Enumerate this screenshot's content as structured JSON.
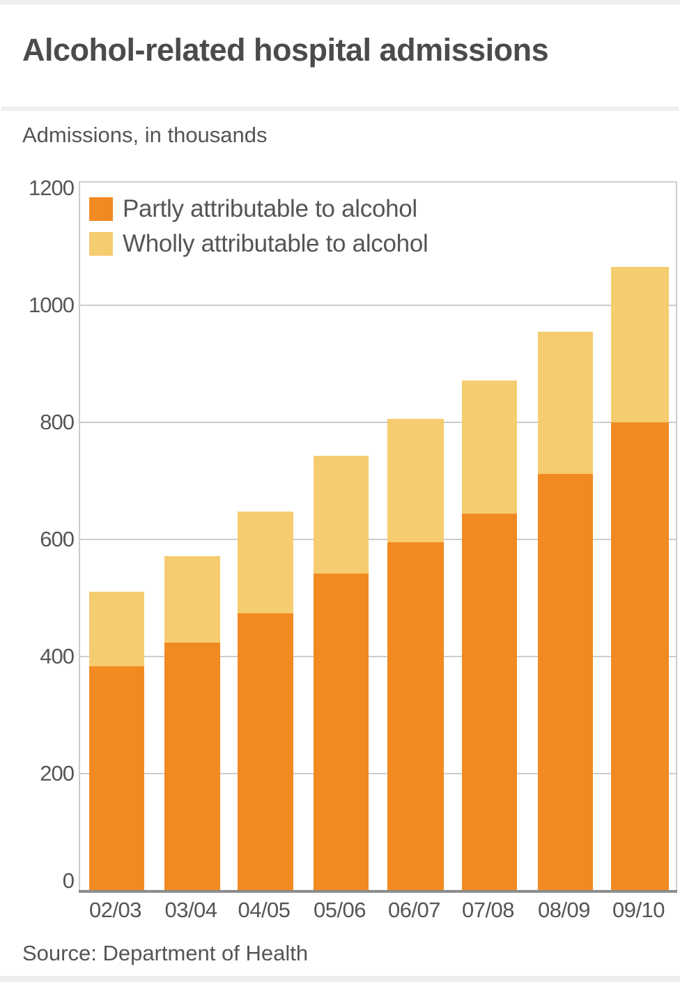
{
  "title": "Alcohol-related hospital admissions",
  "subtitle": "Admissions, in thousands",
  "source": "Source: Department of Health",
  "colors": {
    "partly": "#f28a22",
    "wholly": "#f5cc6f",
    "grid": "#cccccc",
    "axis": "#8c8c8c",
    "text": "#555555"
  },
  "legend": [
    {
      "label": "Partly attributable to alcohol",
      "color": "#f28a22"
    },
    {
      "label": "Wholly attributable to alcohol",
      "color": "#f5cc6f"
    }
  ],
  "y_ticks": [
    "0",
    "200",
    "400",
    "600",
    "800",
    "1000",
    "1200"
  ],
  "x_ticks": [
    "02/03",
    "03/04",
    "04/05",
    "05/06",
    "06/07",
    "07/08",
    "08/09",
    "09/10"
  ],
  "chart_data": {
    "type": "bar",
    "stacked": true,
    "title": "Alcohol-related hospital admissions",
    "subtitle": "Admissions, in thousands",
    "xlabel": "",
    "ylabel": "Admissions, in thousands",
    "ylim": [
      0,
      1200
    ],
    "yticks": [
      0,
      200,
      400,
      600,
      800,
      1000,
      1200
    ],
    "grid": true,
    "legend_position": "top-left inside",
    "categories": [
      "02/03",
      "03/04",
      "04/05",
      "05/06",
      "06/07",
      "07/08",
      "08/09",
      "09/10"
    ],
    "series": [
      {
        "name": "Partly attributable to alcohol",
        "color": "#f28a22",
        "values": [
          383,
          424,
          474,
          542,
          595,
          644,
          712,
          800
        ]
      },
      {
        "name": "Wholly attributable to alcohol",
        "color": "#f5cc6f",
        "values": [
          128,
          147,
          174,
          201,
          211,
          227,
          243,
          265
        ]
      }
    ],
    "totals": [
      511,
      571,
      648,
      743,
      806,
      871,
      955,
      1065
    ],
    "source": "Source: Department of Health"
  }
}
